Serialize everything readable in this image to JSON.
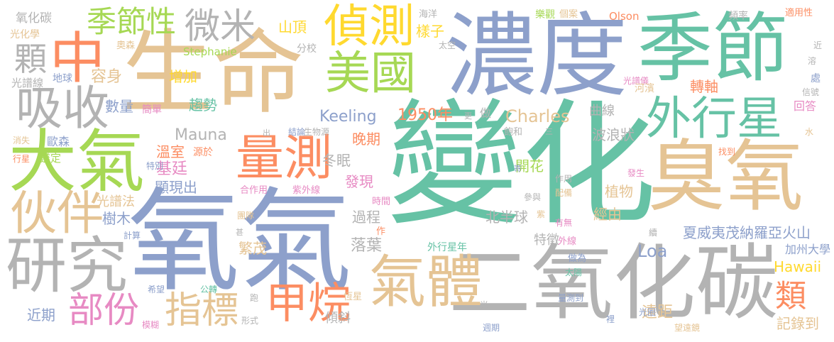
{
  "colors": {
    "blue": "#8da0cb",
    "green": "#66c2a5",
    "orange": "#fc8d62",
    "tan": "#e5c494",
    "gray": "#b3b3b3",
    "lime": "#a6d854",
    "pink": "#e78ac3",
    "yellow": "#ffd92f"
  },
  "words": [
    {
      "text": "變化",
      "color": "green"
    },
    {
      "text": "氧氣",
      "color": "blue"
    },
    {
      "text": "二氧化碳",
      "color": "gray"
    },
    {
      "text": "濃度",
      "color": "blue"
    },
    {
      "text": "生命",
      "color": "tan"
    },
    {
      "text": "季節",
      "color": "green"
    },
    {
      "text": "臭氧",
      "color": "tan"
    },
    {
      "text": "大氣",
      "color": "lime"
    },
    {
      "text": "研究",
      "color": "gray"
    },
    {
      "text": "氣體",
      "color": "tan"
    },
    {
      "text": "中",
      "color": "orange"
    },
    {
      "text": "外行星",
      "color": "green"
    },
    {
      "text": "量測",
      "color": "orange"
    },
    {
      "text": "偵測",
      "color": "yellow"
    },
    {
      "text": "美國",
      "color": "lime"
    },
    {
      "text": "吸收",
      "color": "gray"
    },
    {
      "text": "伙伴",
      "color": "tan"
    },
    {
      "text": "甲烷",
      "color": "orange"
    },
    {
      "text": "部份",
      "color": "pink"
    },
    {
      "text": "指標",
      "color": "tan"
    },
    {
      "text": "微米",
      "color": "gray"
    },
    {
      "text": "季節性",
      "color": "lime"
    },
    {
      "text": "顆",
      "color": "gray"
    },
    {
      "text": "類",
      "color": "orange"
    },
    {
      "text": "Keeling",
      "color": "blue"
    },
    {
      "text": "Charles",
      "color": "tan"
    },
    {
      "text": "1950年",
      "color": "orange"
    },
    {
      "text": "Mauna",
      "color": "gray"
    },
    {
      "text": "Loa",
      "color": "blue"
    },
    {
      "text": "Hawaii",
      "color": "yellow"
    },
    {
      "text": "夏威夷茂納羅亞火山",
      "color": "blue"
    },
    {
      "text": "加州大學",
      "color": "blue"
    },
    {
      "text": "記錄到",
      "color": "tan"
    },
    {
      "text": "遠距",
      "color": "tan"
    },
    {
      "text": "特徵",
      "color": "gray"
    },
    {
      "text": "經由",
      "color": "tan"
    },
    {
      "text": "植物",
      "color": "tan"
    },
    {
      "text": "開花",
      "color": "lime"
    },
    {
      "text": "北半球",
      "color": "gray"
    },
    {
      "text": "過程",
      "color": "gray"
    },
    {
      "text": "落葉",
      "color": "gray"
    },
    {
      "text": "繁茂",
      "color": "tan"
    },
    {
      "text": "晚期",
      "color": "orange"
    },
    {
      "text": "冬眠",
      "color": "gray"
    },
    {
      "text": "發現",
      "color": "pink"
    },
    {
      "text": "基廷",
      "color": "pink"
    },
    {
      "text": "溫室",
      "color": "orange"
    },
    {
      "text": "顯現出",
      "color": "blue"
    },
    {
      "text": "容身",
      "color": "tan"
    },
    {
      "text": "增加",
      "color": "yellow"
    },
    {
      "text": "數量",
      "color": "blue"
    },
    {
      "text": "趨勢",
      "color": "green"
    },
    {
      "text": "山頂",
      "color": "yellow"
    },
    {
      "text": "樣子",
      "color": "yellow"
    },
    {
      "text": "曲線",
      "color": "gray"
    },
    {
      "text": "波浪狀",
      "color": "gray"
    },
    {
      "text": "轉軸",
      "color": "orange"
    },
    {
      "text": "回答",
      "color": "pink"
    },
    {
      "text": "近期",
      "color": "blue"
    },
    {
      "text": "傾斜",
      "color": "gray"
    },
    {
      "text": "樹木",
      "color": "blue"
    },
    {
      "text": "光譜法",
      "color": "tan"
    },
    {
      "text": "歐森",
      "color": "blue"
    },
    {
      "text": "鑑定",
      "color": "lime"
    },
    {
      "text": "簡單",
      "color": "pink"
    },
    {
      "text": "地球",
      "color": "blue"
    },
    {
      "text": "光譜線",
      "color": "gray"
    },
    {
      "text": "氧化碳",
      "color": "gray"
    },
    {
      "text": "光化學",
      "color": "tan"
    },
    {
      "text": "奧森",
      "color": "tan"
    },
    {
      "text": "Stephanie",
      "color": "lime"
    },
    {
      "text": "分校",
      "color": "gray"
    },
    {
      "text": "Olson",
      "color": "orange"
    },
    {
      "text": "樂觀",
      "color": "lime"
    },
    {
      "text": "個案",
      "color": "tan"
    },
    {
      "text": "海洋",
      "color": "gray"
    },
    {
      "text": "太空",
      "color": "gray"
    },
    {
      "text": "頻率",
      "color": "gray"
    },
    {
      "text": "適用性",
      "color": "orange"
    },
    {
      "text": "光譜儀",
      "color": "pink"
    },
    {
      "text": "河濱",
      "color": "tan"
    },
    {
      "text": "飽和",
      "color": "gray"
    },
    {
      "text": "結論",
      "color": "blue"
    },
    {
      "text": "生物源",
      "color": "gray"
    },
    {
      "text": "源於",
      "color": "orange"
    },
    {
      "text": "特別",
      "color": "blue"
    },
    {
      "text": "合作用",
      "color": "pink"
    },
    {
      "text": "紫外線",
      "color": "pink"
    },
    {
      "text": "時間",
      "color": "pink"
    },
    {
      "text": "團隊",
      "color": "tan"
    },
    {
      "text": "計算",
      "color": "blue"
    },
    {
      "text": "希望",
      "color": "blue"
    },
    {
      "text": "公轉",
      "color": "green"
    },
    {
      "text": "跑",
      "color": "gray"
    },
    {
      "text": "恆星",
      "color": "tan"
    },
    {
      "text": "形式",
      "color": "gray"
    },
    {
      "text": "模糊",
      "color": "pink"
    },
    {
      "text": "外行星年",
      "color": "green"
    },
    {
      "text": "參與",
      "color": "gray"
    },
    {
      "text": "作用",
      "color": "gray"
    },
    {
      "text": "配備",
      "color": "tan"
    },
    {
      "text": "有無",
      "color": "pink"
    },
    {
      "text": "外線",
      "color": "pink"
    },
    {
      "text": "做為",
      "color": "blue"
    },
    {
      "text": "太陽",
      "color": "green"
    },
    {
      "text": "量測到",
      "color": "blue"
    },
    {
      "text": "週期",
      "color": "blue"
    },
    {
      "text": "光圈",
      "color": "blue"
    },
    {
      "text": "望遠鏡",
      "color": "tan"
    },
    {
      "text": "發生",
      "color": "pink"
    },
    {
      "text": "續",
      "color": "gray"
    },
    {
      "text": "信號",
      "color": "gray"
    },
    {
      "text": "找到",
      "color": "orange"
    },
    {
      "text": "處",
      "color": "blue"
    },
    {
      "text": "溶",
      "color": "gray"
    },
    {
      "text": "近",
      "color": "gray"
    },
    {
      "text": "水",
      "color": "tan"
    },
    {
      "text": "消失",
      "color": "tan"
    },
    {
      "text": "行星",
      "color": "orange"
    },
    {
      "text": "做",
      "color": "gray"
    },
    {
      "text": "出",
      "color": "gray"
    },
    {
      "text": "更",
      "color": "gray"
    },
    {
      "text": "寄",
      "color": "blue"
    },
    {
      "text": "三",
      "color": "gray"
    },
    {
      "text": "紫",
      "color": "tan"
    },
    {
      "text": "甚",
      "color": "gray"
    },
    {
      "text": "作",
      "color": "orange"
    },
    {
      "text": "光",
      "color": "gray"
    },
    {
      "text": "裡",
      "color": "blue"
    }
  ]
}
